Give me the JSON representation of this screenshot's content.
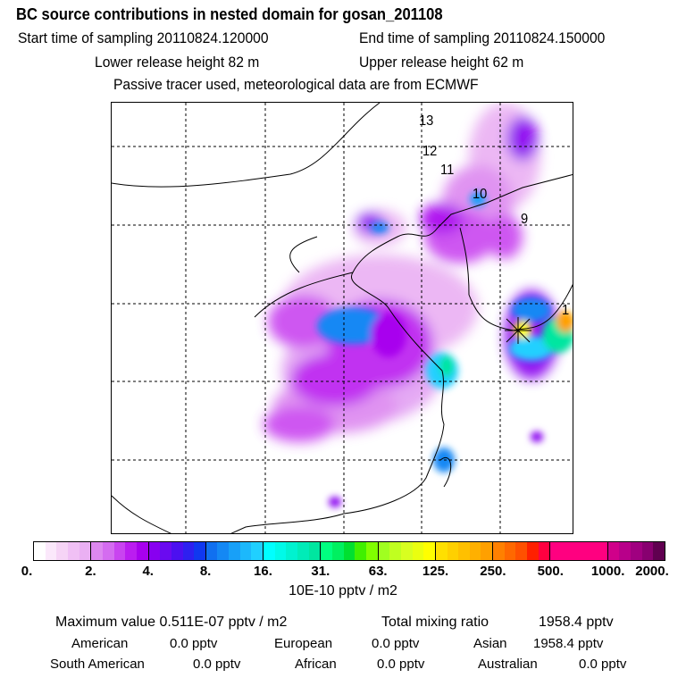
{
  "header": {
    "title": "BC  source contributions in nested domain for gosan_201108",
    "start_label": "Start time of sampling 20110824.120000",
    "end_label": "End time of sampling 20110824.150000",
    "lower_release": "Lower release height   82 m",
    "upper_release": "Upper release height   62 m",
    "note": "Passive tracer used, meteorological data are from ECMWF"
  },
  "map": {
    "track_labels": [
      "13",
      "12",
      "11",
      "10",
      "9",
      "1"
    ]
  },
  "colorbar": {
    "ticks": [
      "0.",
      "2.",
      "4.",
      "8.",
      "16.",
      "31.",
      "63.",
      "125.",
      "250.",
      "500.",
      "1000.",
      "2000."
    ],
    "units": "10E-10 pptv / m2",
    "colors": [
      [
        "#ffffff",
        "#fbe8fb",
        "#f6d4f6",
        "#f0c0f5",
        "#eab0f3"
      ],
      [
        "#dd88f0",
        "#d46cf0",
        "#c944f0",
        "#bb1df0",
        "#a800ee"
      ],
      [
        "#8800f0",
        "#6a0af0",
        "#4c10f0",
        "#2e20f0",
        "#1038f0"
      ],
      [
        "#1070f0",
        "#1488f4",
        "#18a0f8",
        "#1cb8fc",
        "#20d0ff"
      ],
      [
        "#00ffff",
        "#00fae8",
        "#00f2d0",
        "#00ecb8",
        "#00e6a0"
      ],
      [
        "#00ff80",
        "#00f060",
        "#00e030",
        "#40f000",
        "#80ff00"
      ],
      [
        "#a0ff20",
        "#c0ff20",
        "#d8ff20",
        "#eaff10",
        "#ffff00"
      ],
      [
        "#ffe000",
        "#ffd000",
        "#ffc000",
        "#ffb000",
        "#ffa000"
      ],
      [
        "#ff8000",
        "#ff6800",
        "#ff5000",
        "#ff2000",
        "#ff0040"
      ],
      [
        "#ff0080",
        "#ff0080",
        "#ff0080",
        "#ff0080",
        "#ff0080"
      ],
      [
        "#d0008a",
        "#b8008a",
        "#a00080",
        "#880070",
        "#600050"
      ]
    ]
  },
  "stats": {
    "max_label": "Maximum value  0.511E-07 pptv / m2",
    "total_label": "Total mixing ratio",
    "total_value": "1958.4 pptv",
    "american_label": "American",
    "american_value": "0.0 pptv",
    "european_label": "European",
    "european_value": "0.0 pptv",
    "asian_label": "Asian",
    "asian_value": "1958.4 pptv",
    "south_american_label": "South American",
    "south_american_value": "0.0 pptv",
    "african_label": "African",
    "african_value": "0.0 pptv",
    "australian_label": "Australian",
    "australian_value": "0.0 pptv"
  }
}
